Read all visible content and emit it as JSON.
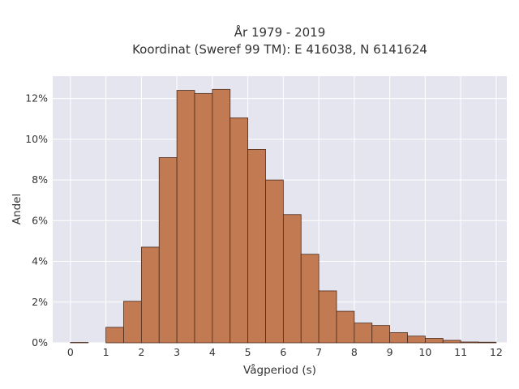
{
  "chart_data": {
    "type": "bar",
    "title_line1": "År 1979 - 2019",
    "title_line2": "Koordinat (Sweref 99 TM): E 416038, N 6141624",
    "xlabel": "Vågperiod (s)",
    "ylabel": "Andel",
    "bin_width": 0.5,
    "bin_starts": [
      0,
      0.5,
      1,
      1.5,
      2,
      2.5,
      3,
      3.5,
      4,
      4.5,
      5,
      5.5,
      6,
      6.5,
      7,
      7.5,
      8,
      8.5,
      9,
      9.5,
      10,
      10.5,
      11,
      11.5
    ],
    "values": [
      0.0002,
      0.0,
      0.0076,
      0.0204,
      0.047,
      0.091,
      0.124,
      0.1225,
      0.1245,
      0.1105,
      0.095,
      0.08,
      0.063,
      0.0435,
      0.0255,
      0.0155,
      0.0097,
      0.0085,
      0.005,
      0.0033,
      0.0022,
      0.0012,
      0.0004,
      0.0003
    ],
    "xlim": [
      -0.5,
      12.3
    ],
    "ylim": [
      0,
      0.131
    ],
    "x_ticks": [
      0,
      1,
      2,
      3,
      4,
      5,
      6,
      7,
      8,
      9,
      10,
      11,
      12
    ],
    "x_tick_labels": [
      "0",
      "1",
      "2",
      "3",
      "4",
      "5",
      "6",
      "7",
      "8",
      "9",
      "10",
      "11",
      "12"
    ],
    "y_ticks": [
      0,
      0.02,
      0.04,
      0.06,
      0.08,
      0.1,
      0.12
    ],
    "y_tick_labels": [
      "0%",
      "2%",
      "4%",
      "6%",
      "8%",
      "10%",
      "12%"
    ],
    "grid": true,
    "legend": "none",
    "colors": {
      "bar_fill": "#c27a52",
      "bar_edge": "#4a2a1a",
      "plot_bg": "#e5e5ef",
      "grid": "#ffffff"
    }
  }
}
